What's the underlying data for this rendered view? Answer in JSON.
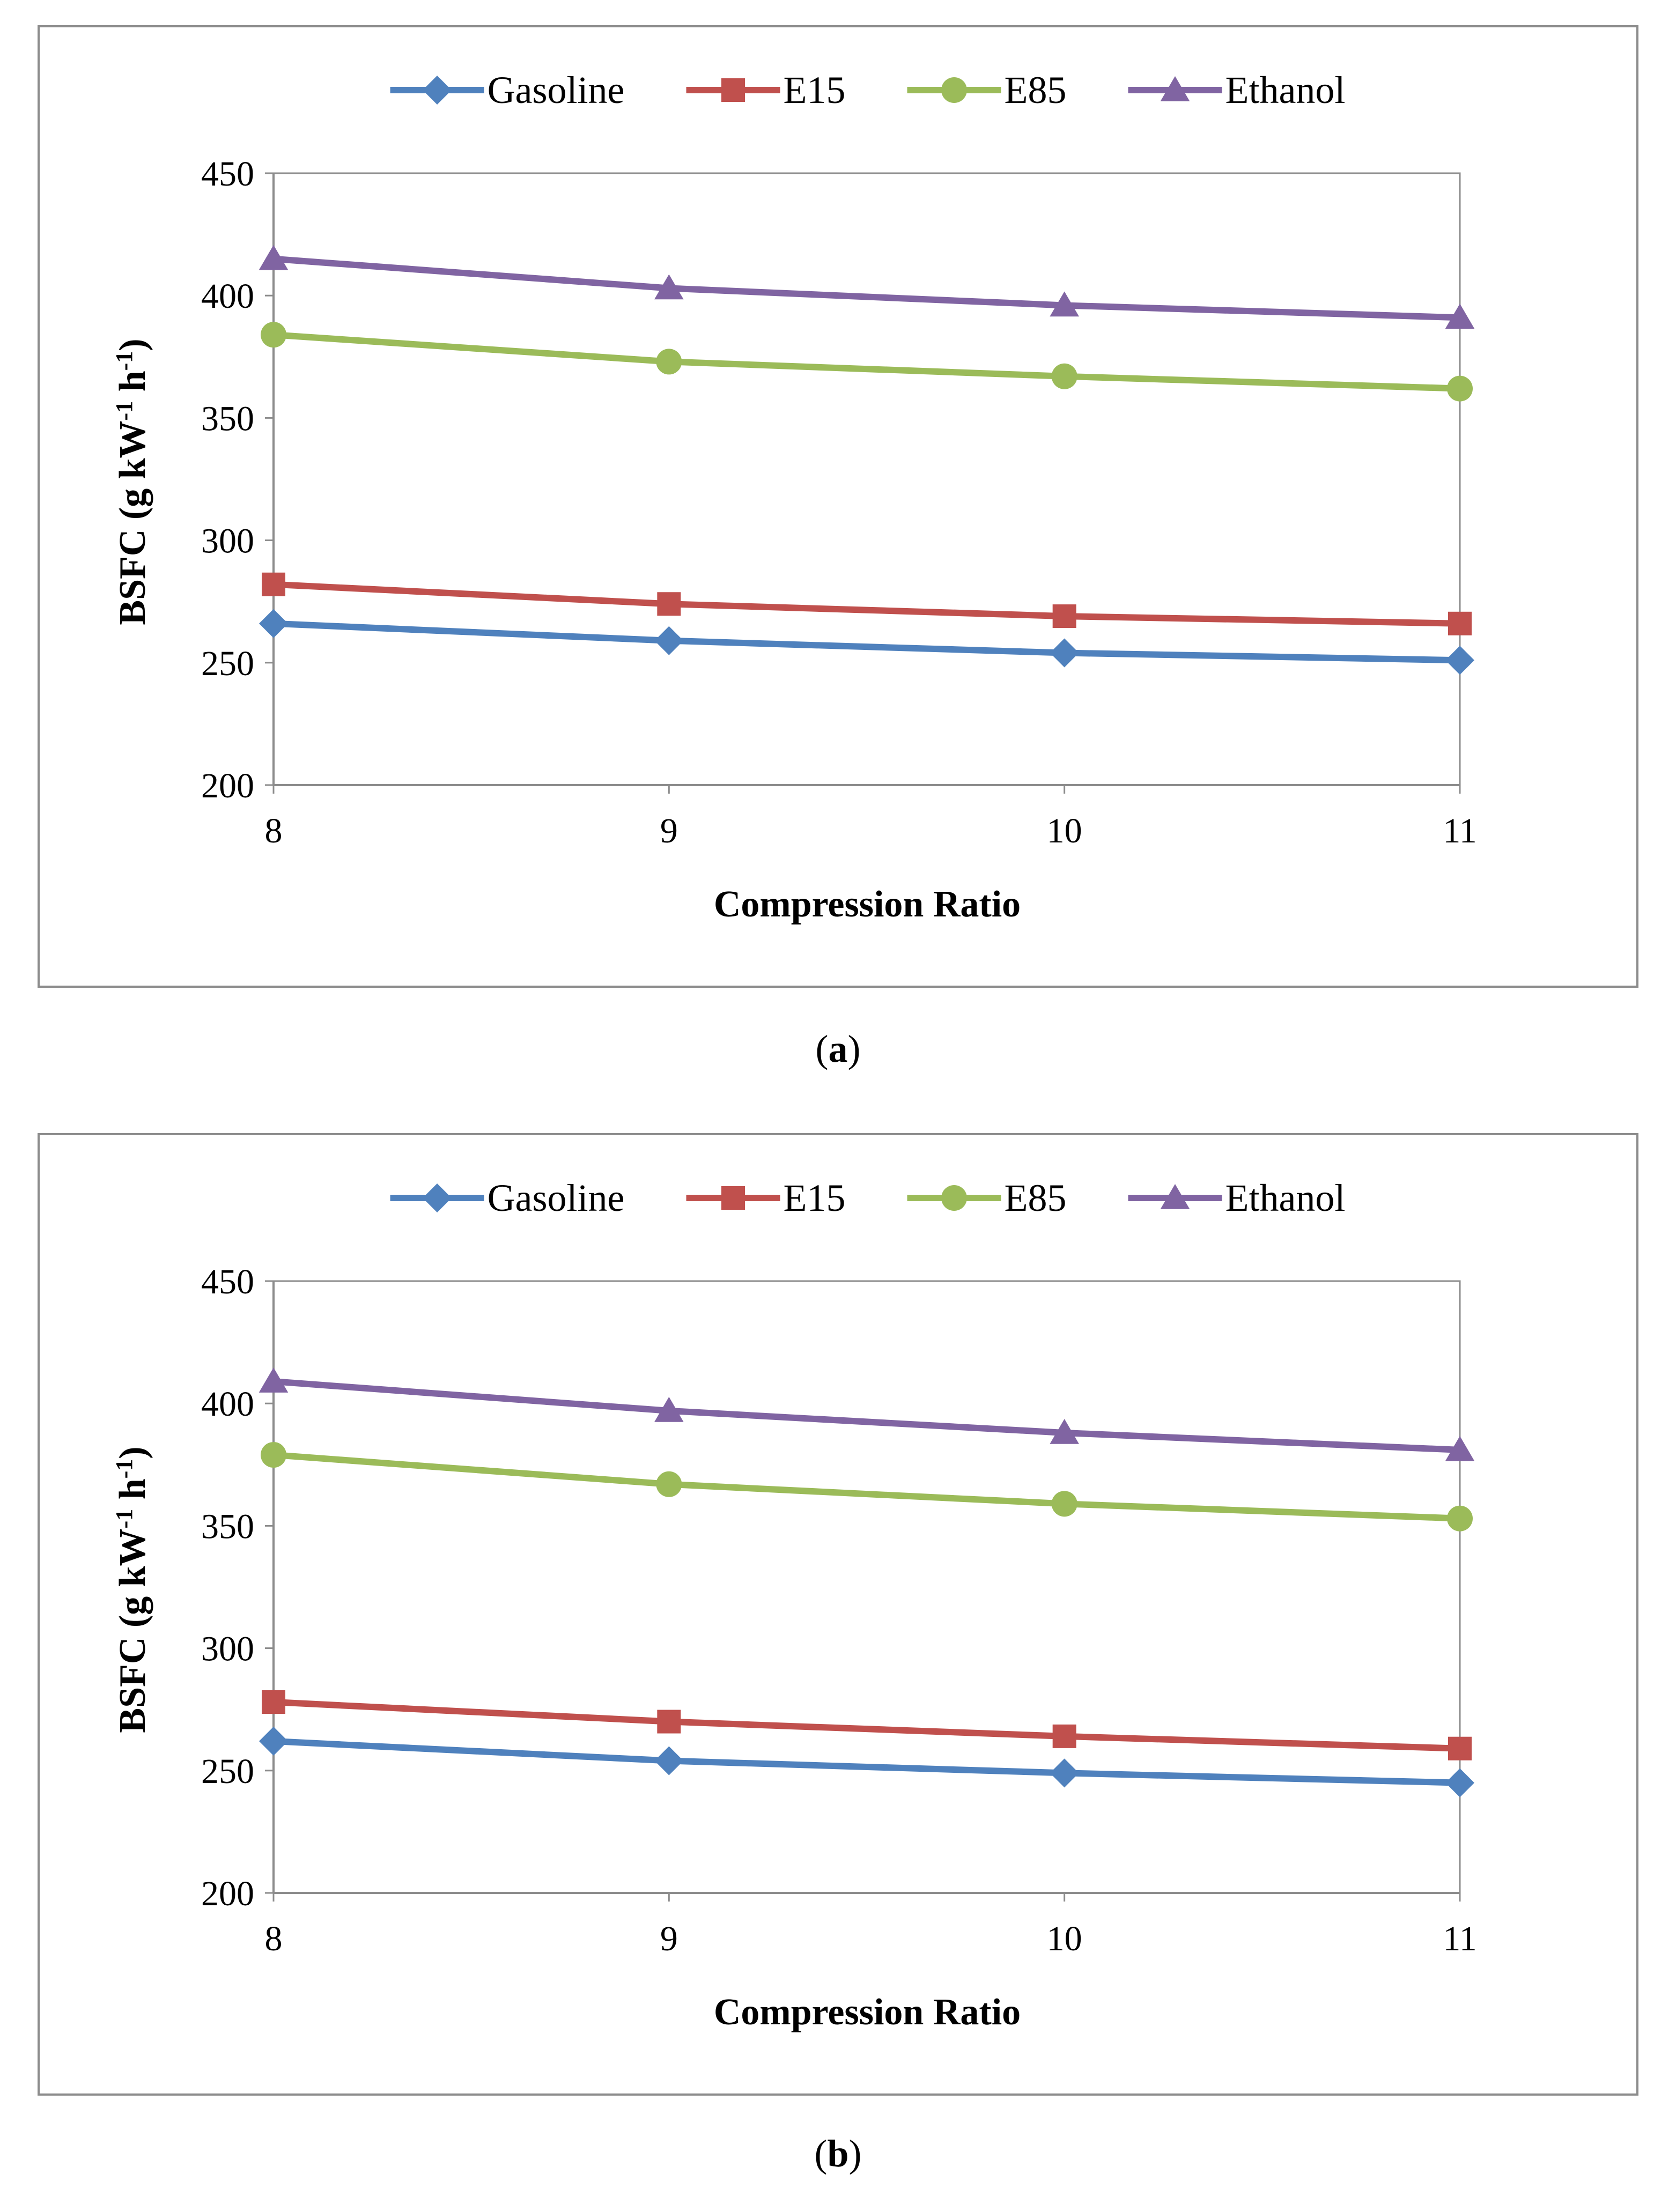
{
  "chart_data": [
    {
      "type": "line",
      "panel_label": "a",
      "x": [
        8,
        9,
        10,
        11
      ],
      "xlabel": "Compression Ratio",
      "ylabel": "BSFC (g kW-1 h-1)",
      "ylabel_parts": {
        "pre": "BSFC (g kW",
        "sup1": "-1",
        "mid": " h",
        "sup2": "-1",
        "post": ")"
      },
      "ylim": [
        200,
        450
      ],
      "yticks": [
        200,
        250,
        300,
        350,
        400,
        450
      ],
      "grid": false,
      "legend": "top",
      "series": [
        {
          "name": "Gasoline",
          "color": "#4f81bd",
          "marker": "diamond",
          "values": [
            266,
            259,
            254,
            251
          ]
        },
        {
          "name": "E15",
          "color": "#c0504d",
          "marker": "square",
          "values": [
            282,
            274,
            269,
            266
          ]
        },
        {
          "name": "E85",
          "color": "#9bbb59",
          "marker": "circle",
          "values": [
            384,
            373,
            367,
            362
          ]
        },
        {
          "name": "Ethanol",
          "color": "#8064a2",
          "marker": "triangle",
          "values": [
            415,
            403,
            396,
            391
          ]
        }
      ]
    },
    {
      "type": "line",
      "panel_label": "b",
      "x": [
        8,
        9,
        10,
        11
      ],
      "xlabel": "Compression Ratio",
      "ylabel": "BSFC (g kW-1 h-1)",
      "ylabel_parts": {
        "pre": "BSFC (g kW",
        "sup1": "-1",
        "mid": " h",
        "sup2": "-1",
        "post": ")"
      },
      "ylim": [
        200,
        450
      ],
      "yticks": [
        200,
        250,
        300,
        350,
        400,
        450
      ],
      "grid": false,
      "legend": "top",
      "series": [
        {
          "name": "Gasoline",
          "color": "#4f81bd",
          "marker": "diamond",
          "values": [
            262,
            254,
            249,
            245
          ]
        },
        {
          "name": "E15",
          "color": "#c0504d",
          "marker": "square",
          "values": [
            278,
            270,
            264,
            259
          ]
        },
        {
          "name": "E85",
          "color": "#9bbb59",
          "marker": "circle",
          "values": [
            379,
            367,
            359,
            353
          ]
        },
        {
          "name": "Ethanol",
          "color": "#8064a2",
          "marker": "triangle",
          "values": [
            409,
            397,
            388,
            381
          ]
        }
      ]
    }
  ],
  "captions": {
    "a": {
      "open": "(",
      "label": "a",
      "close": ")"
    },
    "b": {
      "open": "(",
      "label": "b",
      "close": ")"
    }
  }
}
